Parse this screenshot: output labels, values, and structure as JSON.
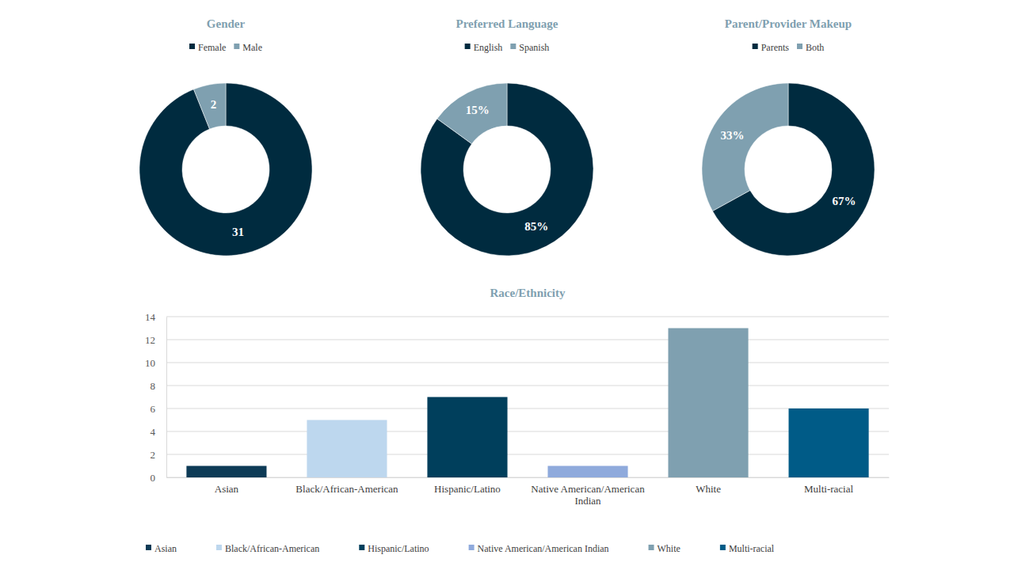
{
  "chart_data": [
    {
      "type": "donut",
      "title": "Gender",
      "categories": [
        "Female",
        "Male"
      ],
      "values": [
        31,
        2
      ],
      "colors": [
        "#002b3f",
        "#7fa0b0"
      ],
      "data_labels": true,
      "legend": "top"
    },
    {
      "type": "donut",
      "title": "Preferred Language",
      "categories": [
        "English",
        "Spanish"
      ],
      "values": [
        85,
        15
      ],
      "value_labels": [
        "85%",
        "15%"
      ],
      "colors": [
        "#002b3f",
        "#7fa0b0"
      ],
      "data_labels": true,
      "legend": "top"
    },
    {
      "type": "donut",
      "title": "Parent/Provider Makeup",
      "categories": [
        "Parents",
        "Both"
      ],
      "values": [
        67,
        33
      ],
      "value_labels": [
        "67%",
        "33%"
      ],
      "colors": [
        "#002b3f",
        "#7fa0b0"
      ],
      "data_labels": true,
      "legend": "top"
    },
    {
      "type": "bar",
      "title": "Race/Ethnicity",
      "categories": [
        "Asian",
        "Black/African-American",
        "Hispanic/Latino",
        "Native American/American Indian",
        "White",
        "Multi-racial"
      ],
      "values": [
        1,
        5,
        7,
        1,
        13,
        6
      ],
      "colors": [
        "#0d3b56",
        "#bdd7ee",
        "#003f5c",
        "#8faadc",
        "#7fa0b0",
        "#005b87"
      ],
      "ylim": [
        0,
        14
      ],
      "yticks": [
        0,
        2,
        4,
        6,
        8,
        10,
        12,
        14
      ],
      "grid": true,
      "legend": "bottom"
    }
  ]
}
